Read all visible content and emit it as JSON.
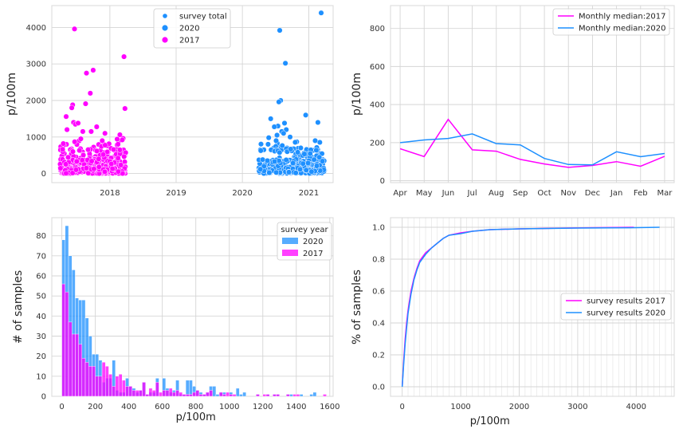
{
  "chart_data": [
    {
      "type": "scatter",
      "ylabel": "p/100m",
      "xlabel": "",
      "x_ticks": [
        "2018",
        "2019",
        "2020",
        "2021"
      ],
      "x_range": [
        "2017-02-15",
        "2021-05-15"
      ],
      "ylim": [
        -250,
        4600
      ],
      "y_ticks": [
        0,
        1000,
        2000,
        3000,
        4000
      ],
      "grid": true,
      "legend_position": "top-center",
      "legend": [
        "survey total",
        "2020",
        "2017"
      ],
      "series": [
        {
          "name": "2017",
          "color": "#ff00ff",
          "date_range": [
            "2017-04-01",
            "2018-03-31"
          ],
          "points": [
            {
              "x": "2017-06-20",
              "y": 3960
            },
            {
              "x": "2018-03-20",
              "y": 3200
            },
            {
              "x": "2017-10-01",
              "y": 2830
            },
            {
              "x": "2017-08-25",
              "y": 2750
            },
            {
              "x": "2017-09-15",
              "y": 2200
            },
            {
              "x": "2017-08-20",
              "y": 1910
            },
            {
              "x": "2017-06-10",
              "y": 1880
            },
            {
              "x": "2017-06-05",
              "y": 1800
            },
            {
              "x": "2018-03-25",
              "y": 1780
            },
            {
              "x": "2017-05-05",
              "y": 1560
            },
            {
              "x": "2017-06-15",
              "y": 1400
            },
            {
              "x": "2017-06-25",
              "y": 1350
            },
            {
              "x": "2017-07-10",
              "y": 1380
            },
            {
              "x": "2017-10-20",
              "y": 1280
            },
            {
              "x": "2017-05-10",
              "y": 1200
            },
            {
              "x": "2017-09-20",
              "y": 1150
            },
            {
              "x": "2018-02-25",
              "y": 1060
            },
            {
              "x": "2017-08-05",
              "y": 1150
            },
            {
              "x": "2017-12-05",
              "y": 1100
            },
            {
              "x": "2018-03-15",
              "y": 960
            },
            {
              "x": "2017-07-25",
              "y": 950
            },
            {
              "x": "2018-02-10",
              "y": 940
            },
            {
              "x": "2018-03-10",
              "y": 920
            },
            {
              "x": "2017-11-20",
              "y": 900
            },
            {
              "x": "2018-02-15",
              "y": 800
            }
          ],
          "bulk": "approx. 600 points between 0 and 900"
        },
        {
          "name": "2020",
          "color": "#1e90ff",
          "date_range": [
            "2020-04-01",
            "2021-03-31"
          ],
          "points": [
            {
              "x": "2021-03-10",
              "y": 4400
            },
            {
              "x": "2020-07-25",
              "y": 3920
            },
            {
              "x": "2020-08-25",
              "y": 3020
            },
            {
              "x": "2020-07-30",
              "y": 2000
            },
            {
              "x": "2020-07-20",
              "y": 1960
            },
            {
              "x": "2020-12-15",
              "y": 1600
            },
            {
              "x": "2020-06-05",
              "y": 1500
            },
            {
              "x": "2021-02-20",
              "y": 1400
            },
            {
              "x": "2020-08-20",
              "y": 1380
            },
            {
              "x": "2020-07-15",
              "y": 1300
            },
            {
              "x": "2020-06-25",
              "y": 1280
            },
            {
              "x": "2020-08-30",
              "y": 1200
            },
            {
              "x": "2020-08-05",
              "y": 1150
            },
            {
              "x": "2020-08-15",
              "y": 1100
            },
            {
              "x": "2020-07-10",
              "y": 1050
            },
            {
              "x": "2020-09-20",
              "y": 1000
            },
            {
              "x": "2020-05-25",
              "y": 980
            },
            {
              "x": "2021-02-05",
              "y": 900
            },
            {
              "x": "2020-07-05",
              "y": 900
            }
          ],
          "bulk": "approx. 380 points between 0 and 800"
        }
      ]
    },
    {
      "type": "line",
      "ylabel": "p/100m",
      "xlabel": "",
      "categories": [
        "Apr",
        "May",
        "Jun",
        "Jul",
        "Aug",
        "Sep",
        "Oct",
        "Nov",
        "Dec",
        "Jan",
        "Feb",
        "Mar"
      ],
      "ylim": [
        -10,
        920
      ],
      "y_ticks": [
        0,
        200,
        400,
        600,
        800
      ],
      "grid": true,
      "legend_position": "top-right",
      "series": [
        {
          "name": "Monthly median:2017",
          "color": "#ff00ff",
          "values": [
            168,
            127,
            322,
            162,
            155,
            112,
            88,
            70,
            80,
            100,
            76,
            128
          ]
        },
        {
          "name": "Monthly median:2020",
          "color": "#1e90ff",
          "values": [
            200,
            214,
            222,
            246,
            195,
            188,
            117,
            85,
            83,
            152,
            126,
            143
          ]
        }
      ]
    },
    {
      "type": "bar",
      "subtype": "histogram",
      "xlabel": "p/100m",
      "ylabel": "# of samples",
      "xlim": [
        -60,
        1620
      ],
      "x_ticks": [
        0,
        200,
        400,
        600,
        800,
        1000,
        1200,
        1400,
        1600
      ],
      "ylim": [
        0,
        89
      ],
      "y_ticks": [
        0,
        10,
        20,
        30,
        40,
        50,
        60,
        70,
        80
      ],
      "bin_width": 20,
      "bin_start": 0,
      "grid": true,
      "legend_title": "survey year",
      "legend_position": "top-right",
      "series": [
        {
          "name": "2020",
          "color": "#1e90ff",
          "values": [
            78,
            85,
            70,
            63,
            49,
            48,
            48,
            39,
            30,
            21,
            21,
            18,
            7,
            9,
            9,
            18,
            3,
            2,
            2,
            9,
            5,
            4,
            2,
            3,
            7,
            1,
            2,
            2,
            9,
            0,
            9,
            4,
            2,
            3,
            8,
            1,
            1,
            8,
            8,
            5,
            3,
            2,
            1,
            2,
            5,
            5,
            1,
            2,
            2,
            0,
            2,
            0,
            4,
            1,
            2,
            0,
            0,
            0,
            1,
            0,
            0,
            1,
            0,
            1,
            1,
            0,
            0,
            1,
            1,
            0,
            0,
            1,
            0,
            0,
            1,
            2,
            0,
            0,
            0,
            0
          ]
        },
        {
          "name": "2017",
          "color": "#ff00ff",
          "values": [
            56,
            52,
            37,
            31,
            31,
            26,
            19,
            17,
            15,
            15,
            10,
            10,
            17,
            15,
            11,
            5,
            10,
            11,
            8,
            5,
            5,
            3,
            3,
            3,
            7,
            1,
            4,
            3,
            7,
            2,
            3,
            3,
            4,
            2,
            3,
            2,
            1,
            1,
            1,
            2,
            3,
            1,
            1,
            2,
            3,
            0,
            0,
            2,
            1,
            2,
            1,
            1,
            0,
            0,
            0,
            0,
            0,
            0,
            1,
            0,
            1,
            1,
            0,
            1,
            1,
            0,
            0,
            1,
            0,
            1,
            1,
            0,
            0,
            0,
            0,
            0,
            0,
            0,
            1,
            0
          ]
        }
      ]
    },
    {
      "type": "line",
      "subtype": "ecdf",
      "xlabel": "p/100m",
      "ylabel": "% of samples",
      "xlim": [
        -200,
        4650
      ],
      "x_ticks": [
        0,
        1000,
        2000,
        3000,
        4000
      ],
      "ylim": [
        -0.06,
        1.06
      ],
      "y_ticks": [
        0.0,
        0.2,
        0.4,
        0.6,
        0.8,
        1.0
      ],
      "grid": true,
      "legend_position": "center-right",
      "series": [
        {
          "name": "survey results 2017",
          "color": "#ff00ff",
          "x": [
            0,
            25,
            50,
            75,
            100,
            150,
            200,
            250,
            300,
            400,
            500,
            600,
            700,
            800,
            1000,
            1200,
            1500,
            2000,
            2800,
            3200,
            3960
          ],
          "y": [
            0.0,
            0.16,
            0.3,
            0.4,
            0.48,
            0.6,
            0.68,
            0.74,
            0.79,
            0.84,
            0.87,
            0.9,
            0.93,
            0.95,
            0.965,
            0.975,
            0.985,
            0.99,
            0.995,
            0.997,
            1.0
          ]
        },
        {
          "name": "survey results 2020",
          "color": "#1e90ff",
          "x": [
            0,
            25,
            50,
            75,
            100,
            150,
            200,
            250,
            300,
            400,
            500,
            600,
            700,
            800,
            1000,
            1200,
            1500,
            2000,
            3000,
            3900,
            4400
          ],
          "y": [
            0.0,
            0.14,
            0.27,
            0.37,
            0.46,
            0.58,
            0.67,
            0.73,
            0.78,
            0.83,
            0.87,
            0.9,
            0.93,
            0.95,
            0.96,
            0.975,
            0.985,
            0.99,
            0.995,
            0.997,
            1.0
          ]
        }
      ]
    }
  ]
}
